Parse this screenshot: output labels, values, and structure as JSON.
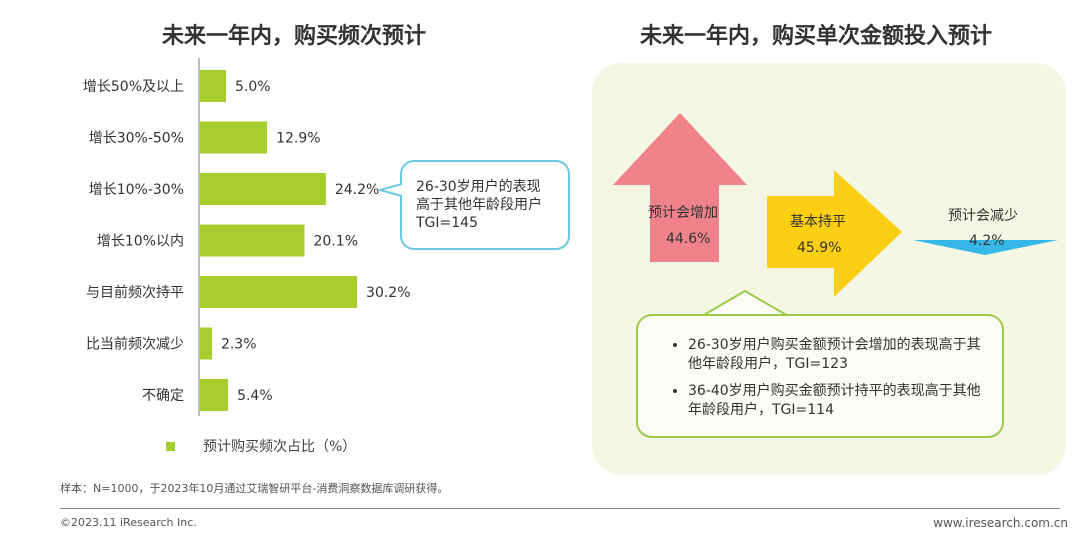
{
  "left_title": "未来一年内，购买频次预计",
  "right_title": "未来一年内，购买单次金额投入预计",
  "chart_data": [
    {
      "type": "bar",
      "orientation": "horizontal",
      "categories": [
        "增长50%及以上",
        "增长30%-50%",
        "增长10%-30%",
        "增长10%以内",
        "与目前频次持平",
        "比当前频次减少",
        "不确定"
      ],
      "series": [
        {
          "name": "预计购买频次占比（%）",
          "values": [
            5.0,
            12.9,
            24.2,
            20.1,
            30.2,
            2.3,
            5.4
          ]
        }
      ],
      "value_labels": [
        "5.0%",
        "12.9%",
        "24.2%",
        "20.1%",
        "30.2%",
        "2.3%",
        "5.4%"
      ],
      "bar_color": "#a6cd2c",
      "legend": "bottom"
    },
    {
      "type": "arrows",
      "categories": [
        "预计会增加",
        "基本持平",
        "预计会减少"
      ],
      "values": [
        44.6,
        45.9,
        4.2
      ],
      "value_labels": [
        "44.6%",
        "45.9%",
        "4.2%"
      ],
      "colors": [
        "#f0838a",
        "#fccf15",
        "#35b8e8"
      ]
    }
  ],
  "legend_label": "预计购买频次占比（%）",
  "callout_left": {
    "line1": "26-30岁用户的表现",
    "line2": "高于其他年龄段用户",
    "line3": "TGI=145"
  },
  "callout_right": {
    "item1": "26-30岁用户购买金额预计会增加的表现高于其他年龄段用户，TGI=123",
    "item2": "36-40岁用户购买金额预计持平的表现高于其他年龄段用户，TGI=114"
  },
  "source": "样本：N=1000，于2023年10月通过艾瑞智研平台-消费洞察数据库调研获得。",
  "footer_left": "©2023.11 iResearch Inc.",
  "footer_right": "www.iresearch.com.cn"
}
